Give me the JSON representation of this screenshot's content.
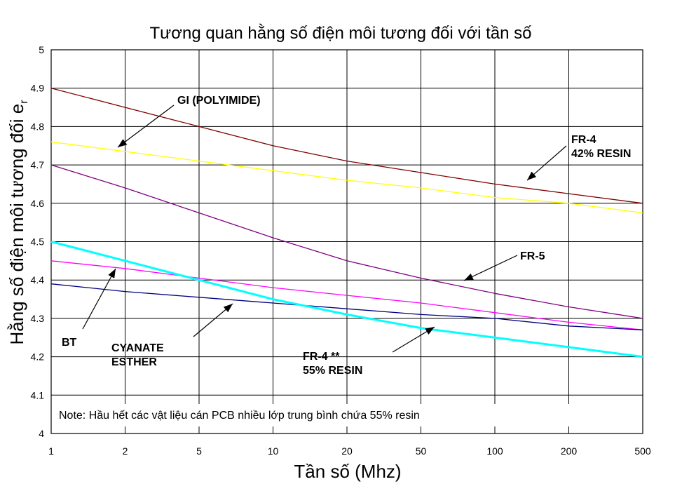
{
  "chart_data": {
    "type": "line",
    "title": "Tương quan hằng số điện môi tương đối với tần số",
    "xlabel": "Tần số (Mhz)",
    "ylabel_main": "Hằng số điện môi tương đối e",
    "ylabel_sub": "r",
    "x_scale": "categorical-log",
    "x": [
      "1",
      "2",
      "5",
      "10",
      "20",
      "50",
      "100",
      "200",
      "500"
    ],
    "ylim": [
      4,
      5
    ],
    "yticks": [
      "4",
      "4.1",
      "4.2",
      "4.3",
      "4.4",
      "4.5",
      "4.6",
      "4.7",
      "4.8",
      "4.9",
      "5"
    ],
    "grid": true,
    "series": [
      {
        "id": "gi",
        "color": "#800000",
        "width": 1.3,
        "values": [
          4.9,
          4.85,
          4.8,
          4.75,
          4.71,
          4.68,
          4.65,
          4.625,
          4.6
        ]
      },
      {
        "id": "fr4-42",
        "color": "#ffff00",
        "width": 1.3,
        "values": [
          4.76,
          4.735,
          4.71,
          4.685,
          4.66,
          4.64,
          4.615,
          4.6,
          4.575
        ]
      },
      {
        "id": "fr5",
        "color": "#800080",
        "width": 1.3,
        "values": [
          4.7,
          4.64,
          4.575,
          4.51,
          4.45,
          4.405,
          4.365,
          4.33,
          4.3
        ]
      },
      {
        "id": "bt",
        "color": "#ff00ff",
        "width": 1.3,
        "values": [
          4.45,
          4.43,
          4.405,
          4.38,
          4.36,
          4.34,
          4.315,
          4.29,
          4.27
        ]
      },
      {
        "id": "cyanate",
        "color": "#000080",
        "width": 1.3,
        "values": [
          4.39,
          4.37,
          4.355,
          4.34,
          4.325,
          4.31,
          4.3,
          4.28,
          4.27
        ]
      },
      {
        "id": "fr4-55",
        "color": "#00ffff",
        "width": 3,
        "values": [
          4.5,
          4.45,
          4.4,
          4.35,
          4.31,
          4.275,
          4.25,
          4.225,
          4.2
        ]
      }
    ],
    "annotations": [
      {
        "id": "gi",
        "lines": [
          "GI (POLYIMIDE)"
        ]
      },
      {
        "id": "fr4-42",
        "lines": [
          "FR-4",
          "42% RESIN"
        ]
      },
      {
        "id": "fr5",
        "lines": [
          "FR-5"
        ]
      },
      {
        "id": "bt",
        "lines": [
          "BT"
        ]
      },
      {
        "id": "cyanate",
        "lines": [
          "CYANATE",
          "ESTHER"
        ]
      },
      {
        "id": "fr4-55",
        "lines": [
          "FR-4 **",
          "55% RESIN"
        ]
      }
    ],
    "note": "Note: Hầu hết các vật liệu cán PCB nhiều lớp trung bình chứa 55% resin"
  }
}
